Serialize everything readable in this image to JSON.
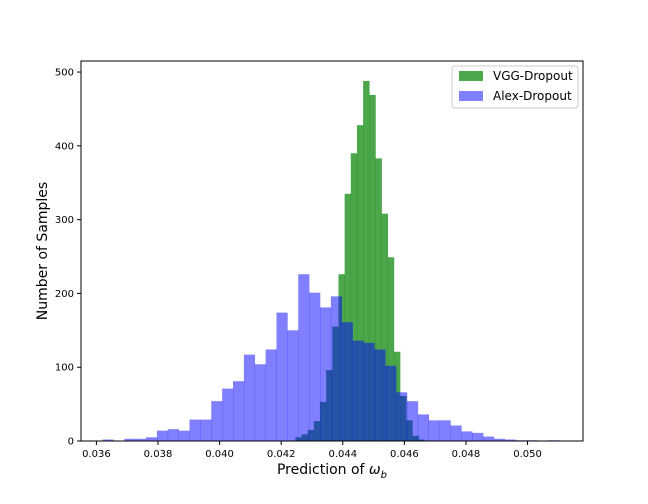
{
  "chart_data": {
    "type": "histogram",
    "title": "",
    "xlabel": "Prediction of ",
    "xlabel_symbol": "ω",
    "xlabel_subscript": "b",
    "ylabel": "Number of Samples",
    "xlim": [
      0.0355,
      0.0518
    ],
    "ylim": [
      0,
      515
    ],
    "xticks": [
      0.036,
      0.038,
      0.04,
      0.042,
      0.044,
      0.046,
      0.048,
      0.05
    ],
    "xtick_labels": [
      "0.036",
      "0.038",
      "0.040",
      "0.042",
      "0.044",
      "0.046",
      "0.048",
      "0.050"
    ],
    "yticks": [
      0,
      100,
      200,
      300,
      400,
      500
    ],
    "ytick_labels": [
      "0",
      "100",
      "200",
      "300",
      "400",
      "500"
    ],
    "grid": false,
    "legend_position": "top-right",
    "series": [
      {
        "name": "VGG-Dropout",
        "color": "#008000",
        "opacity": 0.7,
        "bin_start": 0.04246,
        "bin_width": 0.0002,
        "values": [
          5,
          9,
          15,
          27,
          53,
          96,
          155,
          226,
          335,
          390,
          428,
          488,
          469,
          383,
          308,
          249,
          121,
          61,
          28,
          7,
          2
        ]
      },
      {
        "name": "Alex-Dropout",
        "color": "#0000ff",
        "opacity": 0.5,
        "bin_start": 0.0362,
        "bin_width": 0.000353,
        "values": [
          2,
          0,
          3,
          3,
          5,
          14,
          16,
          14,
          29,
          29,
          54,
          71,
          81,
          117,
          104,
          124,
          174,
          150,
          226,
          201,
          181,
          196,
          161,
          136,
          133,
          124,
          102,
          66,
          54,
          36,
          28,
          28,
          21,
          13,
          11,
          6,
          3,
          2,
          1,
          1,
          0,
          1
        ]
      }
    ]
  }
}
